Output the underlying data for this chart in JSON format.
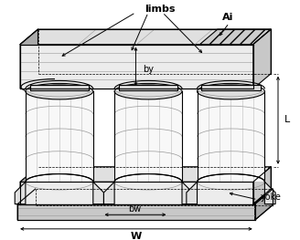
{
  "bg_color": "#ffffff",
  "line_color": "#000000",
  "fill_light": "#e0e0e0",
  "fill_lighter": "#ececec",
  "fill_mid": "#c8c8c8",
  "fill_dark": "#aaaaaa",
  "fill_white": "#f8f8f8",
  "labels": {
    "limbs": "limbs",
    "Ai": "Ai",
    "by": "by",
    "bw": "bw",
    "W": "W",
    "L": "L",
    "yoke": "yoke"
  },
  "figsize": [
    3.28,
    2.63
  ],
  "dpi": 100
}
